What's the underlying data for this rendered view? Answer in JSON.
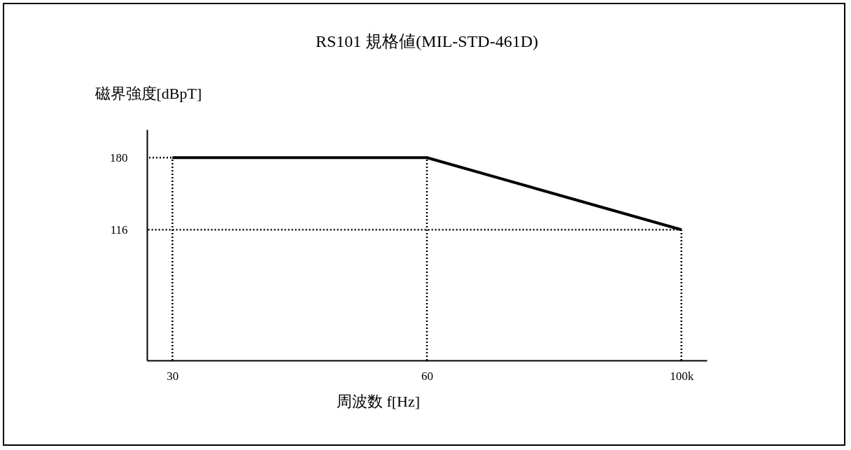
{
  "chart_data": {
    "type": "line",
    "title": "RS101 規格値(MIL-STD-461D)",
    "xlabel": "周波数 f[Hz]",
    "ylabel": "磁界強度[dBpT]",
    "categories": [
      "30",
      "60",
      "100k"
    ],
    "values": [
      180,
      180,
      116
    ],
    "color": "#000000",
    "ylim": [
      0,
      205
    ],
    "yticks": [
      180,
      116
    ],
    "grid": false,
    "line_style": "solid",
    "marker": "none",
    "ref_lines": [
      {
        "axis": "y",
        "value": 180,
        "line_style": "dotted"
      },
      {
        "axis": "y",
        "value": 116,
        "line_style": "dotted"
      },
      {
        "axis": "x",
        "value": "30",
        "line_style": "dotted"
      },
      {
        "axis": "x",
        "value": "60",
        "line_style": "dotted"
      },
      {
        "axis": "x",
        "value": "100k",
        "line_style": "dotted"
      }
    ]
  }
}
